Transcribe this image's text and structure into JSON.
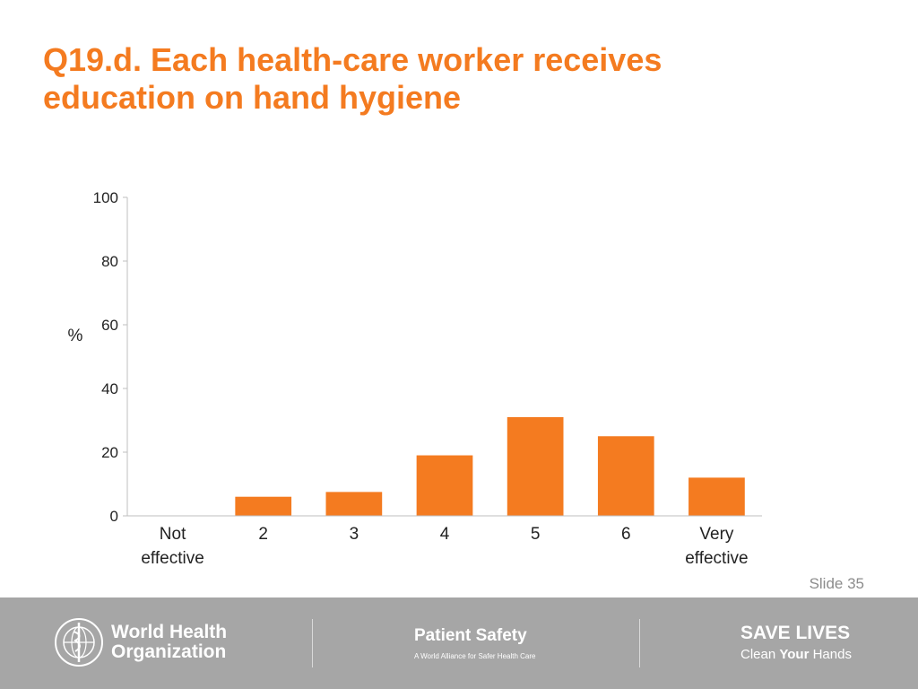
{
  "slide": {
    "title_line1": "Q19.d. Each health-care worker receives",
    "title_line2": "education on hand hygiene",
    "slide_number": "Slide 35",
    "accent_color": "#f47b20"
  },
  "chart_data": {
    "type": "bar",
    "categories": [
      [
        "Not",
        "effective"
      ],
      [
        "2"
      ],
      [
        "3"
      ],
      [
        "4"
      ],
      [
        "5"
      ],
      [
        "6"
      ],
      [
        "Very",
        "effective"
      ]
    ],
    "values": [
      0,
      6,
      7.5,
      19,
      31,
      25,
      12
    ],
    "ylabel": "%",
    "ylim": [
      0,
      100
    ],
    "yticks": [
      0,
      20,
      40,
      60,
      80,
      100
    ],
    "grid": false,
    "legend": "none",
    "bar_color": "#f47b20"
  },
  "footer": {
    "who_line1": "World Health",
    "who_line2": "Organization",
    "patient_safety_title": "Patient Safety",
    "patient_safety_sub": "A World Alliance for Safer Health Care",
    "save_lives": "SAVE LIVES",
    "clean_prefix": "Clean ",
    "clean_bold": "Your",
    "clean_suffix": " Hands",
    "who_logo_icon": "who-emblem-icon"
  }
}
